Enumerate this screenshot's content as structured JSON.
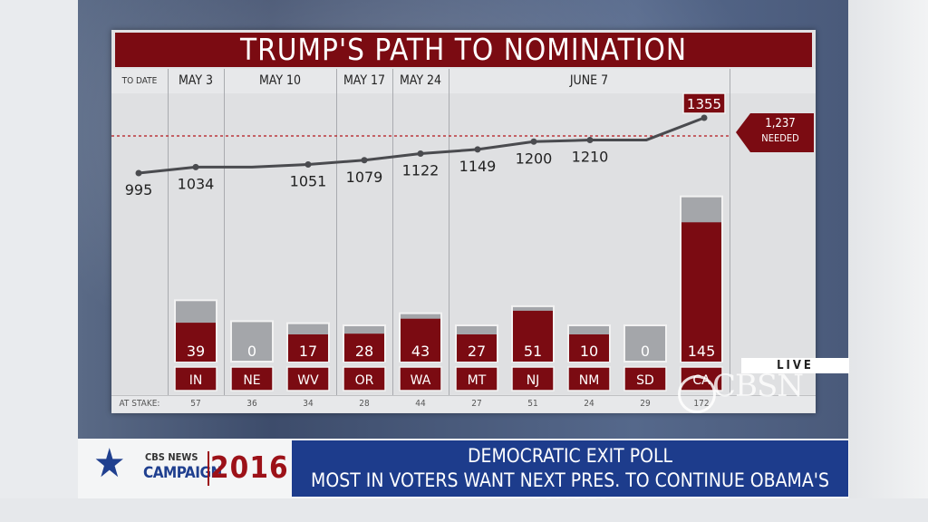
{
  "chart_data": {
    "type": "bar+line",
    "title": "TRUMP'S PATH TO NOMINATION",
    "header_label": "TO DATE",
    "stake_label": "AT STAKE:",
    "needed_value": "1,237",
    "needed_label": "NEEDED",
    "threshold": 1237,
    "dates": [
      {
        "label": "MAY 3"
      },
      {
        "label": "MAY 10"
      },
      {
        "label": "MAY 17"
      },
      {
        "label": "MAY 24"
      },
      {
        "label": "JUNE 7"
      }
    ],
    "states": [
      {
        "state": "IN",
        "won": 39,
        "stake": 57
      },
      {
        "state": "NE",
        "won": 0,
        "stake": 36
      },
      {
        "state": "WV",
        "won": 17,
        "stake": 34
      },
      {
        "state": "OR",
        "won": 28,
        "stake": 28
      },
      {
        "state": "WA",
        "won": 43,
        "stake": 44
      },
      {
        "state": "MT",
        "won": 27,
        "stake": 27
      },
      {
        "state": "NJ",
        "won": 51,
        "stake": 51
      },
      {
        "state": "NM",
        "won": 10,
        "stake": 24
      },
      {
        "state": "SD",
        "won": 0,
        "stake": 29
      },
      {
        "state": "CA",
        "won": 145,
        "stake": 172
      }
    ],
    "cumulative": [
      {
        "value": 995,
        "label": "995"
      },
      {
        "value": 1034,
        "label": "1034"
      },
      {
        "value": 1034,
        "label": ""
      },
      {
        "value": 1051,
        "label": "1051"
      },
      {
        "value": 1079,
        "label": "1079"
      },
      {
        "value": 1122,
        "label": "1122"
      },
      {
        "value": 1149,
        "label": "1149"
      },
      {
        "value": 1200,
        "label": "1200"
      },
      {
        "value": 1210,
        "label": "1210"
      },
      {
        "value": 1210,
        "label": ""
      },
      {
        "value": 1355,
        "label": "1355"
      }
    ],
    "colors": {
      "won": "#7b0b12",
      "stake": "#a4a6aa",
      "line": "#4a4b4f",
      "threshold": "#b3151c"
    }
  },
  "overlay": {
    "live": "LIVE",
    "network": "CBSN"
  },
  "lower_third": {
    "brand_top": "CBS NEWS",
    "brand_main": "CAMPAIGN",
    "year": "2016",
    "headline": "DEMOCRATIC EXIT POLL",
    "subline": "MOST IN VOTERS WANT NEXT PRES. TO CONTINUE OBAMA'S POLICIES"
  }
}
